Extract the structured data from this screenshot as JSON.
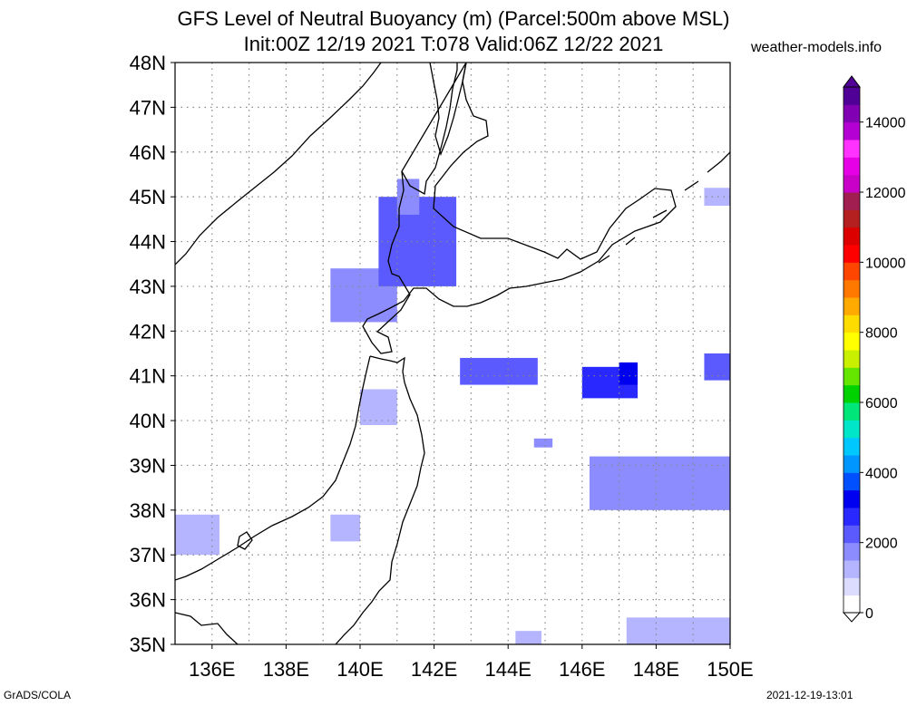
{
  "title": {
    "line1": "GFS Level of Neutral Buoyancy (m) (Parcel:500m above MSL)",
    "line2": "Init:00Z 12/19 2021 T:078 Valid:06Z 12/22 2021"
  },
  "brand": "weather-models.info",
  "footer": {
    "left": "GrADS/COLA",
    "right": "2021-12-19-13:01"
  },
  "map": {
    "lat_labels": [
      "48N",
      "47N",
      "46N",
      "45N",
      "44N",
      "43N",
      "42N",
      "41N",
      "40N",
      "39N",
      "38N",
      "37N",
      "36N",
      "35N"
    ],
    "lon_labels": [
      "136E",
      "138E",
      "140E",
      "142E",
      "144E",
      "146E",
      "148E",
      "150E"
    ],
    "lat_range": [
      35,
      48
    ],
    "lon_range": [
      135,
      150
    ],
    "grid": "dotted",
    "coastline_color": "#000000"
  },
  "colorbar": {
    "labels": [
      "0",
      "2000",
      "4000",
      "6000",
      "8000",
      "10000",
      "12000",
      "14000"
    ],
    "range": [
      0,
      15000
    ],
    "colors": [
      "#ffffff",
      "#dcdcff",
      "#b4b4ff",
      "#8c8cff",
      "#5a5aff",
      "#2828ff",
      "#0000f0",
      "#0050ff",
      "#0096ff",
      "#00c8ff",
      "#00e6c8",
      "#00e678",
      "#00d200",
      "#64e600",
      "#c8f000",
      "#ffff00",
      "#ffdc00",
      "#ffaa00",
      "#ff7800",
      "#ff4600",
      "#ff0000",
      "#dc0000",
      "#b42020",
      "#a01e50",
      "#c800c8",
      "#e600e6",
      "#ff32ff",
      "#b400d2",
      "#8200b4",
      "#500096"
    ]
  },
  "chart_data": {
    "type": "heatmap",
    "variable": "Level of Neutral Buoyancy (m)",
    "units": "m",
    "regions": [
      {
        "lon": [
          139.2,
          141.0
        ],
        "lat": [
          42.2,
          43.4
        ],
        "value": 1800
      },
      {
        "lon": [
          140.5,
          142.6
        ],
        "lat": [
          43.0,
          45.0
        ],
        "value": 2000
      },
      {
        "lon": [
          141.0,
          141.6
        ],
        "lat": [
          44.6,
          45.4
        ],
        "value": 1500
      },
      {
        "lon": [
          140.0,
          141.0
        ],
        "lat": [
          39.9,
          40.7
        ],
        "value": 1400
      },
      {
        "lon": [
          142.7,
          144.8
        ],
        "lat": [
          40.8,
          41.4
        ],
        "value": 2300
      },
      {
        "lon": [
          146.0,
          147.5
        ],
        "lat": [
          40.5,
          41.2
        ],
        "value": 2500
      },
      {
        "lon": [
          147.0,
          147.5
        ],
        "lat": [
          40.8,
          41.3
        ],
        "value": 3200
      },
      {
        "lon": [
          146.2,
          150.0
        ],
        "lat": [
          38.0,
          39.2
        ],
        "value": 1800
      },
      {
        "lon": [
          135.0,
          136.2
        ],
        "lat": [
          37.0,
          37.9
        ],
        "value": 1200
      },
      {
        "lon": [
          139.2,
          140.0
        ],
        "lat": [
          37.3,
          37.9
        ],
        "value": 1300
      },
      {
        "lon": [
          149.3,
          150.0
        ],
        "lat": [
          40.9,
          41.5
        ],
        "value": 2400
      },
      {
        "lon": [
          149.3,
          150.0
        ],
        "lat": [
          44.8,
          45.2
        ],
        "value": 1400
      },
      {
        "lon": [
          147.2,
          150.0
        ],
        "lat": [
          35.0,
          35.6
        ],
        "value": 1400
      },
      {
        "lon": [
          144.2,
          144.9
        ],
        "lat": [
          35.0,
          35.3
        ],
        "value": 1200
      },
      {
        "lon": [
          144.7,
          145.2
        ],
        "lat": [
          39.4,
          39.6
        ],
        "value": 1900
      }
    ]
  }
}
